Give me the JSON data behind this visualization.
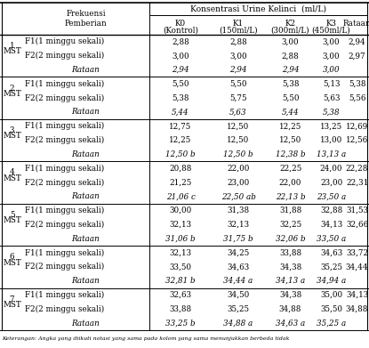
{
  "title": "Konsentrasi Urine Kelinci  (ml/L)",
  "col_headers_line1": [
    "K0",
    "K1",
    "K2",
    "K3",
    "Rataan"
  ],
  "col_headers_line2": [
    "(Kontrol)",
    "(150ml/L)",
    "(300ml/L)",
    "(450ml/L)",
    ""
  ],
  "row_groups": [
    {
      "mst_num": "1",
      "rows": [
        {
          "freq": "F1(1 minggu sekali)",
          "vals": [
            "2,88",
            "2,88",
            "3,00",
            "3,00",
            "2,94"
          ]
        },
        {
          "freq": "F2(2 minggu sekali)",
          "vals": [
            "3,00",
            "3,00",
            "2,88",
            "3,00",
            "2,97"
          ]
        }
      ],
      "rataan": [
        "2,94",
        "2,94",
        "2,94",
        "3,00",
        ""
      ]
    },
    {
      "mst_num": "2",
      "rows": [
        {
          "freq": "F1(1 minggu sekali)",
          "vals": [
            "5,50",
            "5,50",
            "5,38",
            "5,13",
            "5,38"
          ]
        },
        {
          "freq": "F2(2 minggu sekali)",
          "vals": [
            "5,38",
            "5,75",
            "5,50",
            "5,63",
            "5,56"
          ]
        }
      ],
      "rataan": [
        "5,44",
        "5,63",
        "5,44",
        "5,38",
        ""
      ]
    },
    {
      "mst_num": "3",
      "rows": [
        {
          "freq": "F1(1 minggu sekali)",
          "vals": [
            "12,75",
            "12,50",
            "12,25",
            "13,25",
            "12,69"
          ]
        },
        {
          "freq": "F2(2 minggu sekali)",
          "vals": [
            "12,25",
            "12,50",
            "12,50",
            "13,00",
            "12,56"
          ]
        }
      ],
      "rataan": [
        "12,50 b",
        "12,50 b",
        "12,38 b",
        "13,13 a",
        ""
      ]
    },
    {
      "mst_num": "4",
      "rows": [
        {
          "freq": "F1(1 minggu sekali)",
          "vals": [
            "20,88",
            "22,00",
            "22,25",
            "24,00",
            "22,28"
          ]
        },
        {
          "freq": "F2(2 minggu sekali)",
          "vals": [
            "21,25",
            "23,00",
            "22,00",
            "23,00",
            "22,31"
          ]
        }
      ],
      "rataan": [
        "21,06 c",
        "22,50 ab",
        "22,13 b",
        "23,50 a",
        ""
      ]
    },
    {
      "mst_num": "5",
      "rows": [
        {
          "freq": "F1(1 minggu sekali)",
          "vals": [
            "30,00",
            "31,38",
            "31,88",
            "32,88",
            "31,53"
          ]
        },
        {
          "freq": "F2(2 minggu sekali)",
          "vals": [
            "32,13",
            "32,13",
            "32,25",
            "34,13",
            "32,66"
          ]
        }
      ],
      "rataan": [
        "31,06 b",
        "31,75 b",
        "32,06 b",
        "33,50 a",
        ""
      ]
    },
    {
      "mst_num": "6",
      "rows": [
        {
          "freq": "F1(1 minggu sekali)",
          "vals": [
            "32,13",
            "34,25",
            "33,88",
            "34,63",
            "33,72"
          ]
        },
        {
          "freq": "F2(2 minggu sekali)",
          "vals": [
            "33,50",
            "34,63",
            "34,38",
            "35,25",
            "34,44"
          ]
        }
      ],
      "rataan": [
        "32,81 b",
        "34,44 a",
        "34,13 a",
        "34,94 a",
        ""
      ]
    },
    {
      "mst_num": "7",
      "rows": [
        {
          "freq": "F1(1 minggu sekali)",
          "vals": [
            "32,63",
            "34,50",
            "34,38",
            "35,00",
            "34,13"
          ]
        },
        {
          "freq": "F2(2 minggu sekali)",
          "vals": [
            "33,88",
            "35,25",
            "34,88",
            "35,50",
            "34,88"
          ]
        }
      ],
      "rataan": [
        "33,25 b",
        "34,88 a",
        "34,63 a",
        "35,25 a",
        ""
      ]
    }
  ],
  "footer": "Keterangan: Angka yang diikuti notasi yang sama pada kolom yang sama menunjukkan berbeda tidak",
  "background_color": "#ffffff",
  "font_size": 6.3,
  "rataan_row_italic": true
}
